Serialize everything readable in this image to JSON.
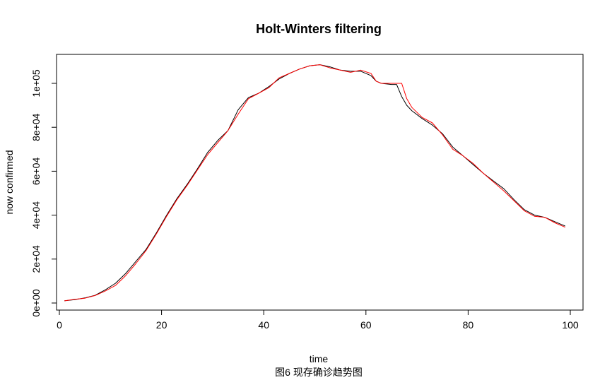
{
  "caption": "图6 现存确诊趋势图",
  "chart_data": {
    "type": "line",
    "title": "Holt-Winters filtering",
    "xlabel": "time",
    "ylabel": "now confirmed",
    "xlim": [
      1,
      99
    ],
    "ylim": [
      0,
      109000
    ],
    "x_ticks": [
      0,
      20,
      40,
      60,
      80,
      100
    ],
    "x_tick_labels": [
      "0",
      "20",
      "40",
      "60",
      "80",
      "100"
    ],
    "y_ticks": [
      0,
      20000,
      40000,
      60000,
      80000,
      100000
    ],
    "y_tick_labels": [
      "0e+00",
      "2e+04",
      "4e+04",
      "6e+04",
      "8e+04",
      "1e+05"
    ],
    "grid": false,
    "legend": "none",
    "x": [
      1,
      3,
      5,
      7,
      9,
      11,
      13,
      15,
      17,
      19,
      21,
      23,
      25,
      27,
      29,
      31,
      33,
      35,
      37,
      39,
      41,
      43,
      45,
      47,
      49,
      51,
      53,
      55,
      57,
      59,
      61,
      62,
      63,
      65,
      66,
      67,
      68,
      69,
      71,
      73,
      75,
      77,
      79,
      81,
      83,
      85,
      87,
      89,
      91,
      93,
      95,
      97,
      99
    ],
    "series": [
      {
        "color": "#000000",
        "values": [
          1000,
          1500,
          2300,
          3500,
          6000,
          9000,
          13500,
          19000,
          24500,
          32000,
          40000,
          47500,
          54000,
          61000,
          68500,
          74000,
          78500,
          88000,
          93500,
          95500,
          98500,
          102000,
          104500,
          106500,
          108000,
          108500,
          107500,
          106000,
          105500,
          105500,
          103500,
          101000,
          100000,
          99500,
          99500,
          94000,
          90000,
          87500,
          84000,
          81000,
          77000,
          71000,
          67000,
          63000,
          59000,
          55500,
          52000,
          47000,
          42500,
          40000,
          39000,
          37000,
          35000
        ]
      },
      {
        "color": "#ff0000",
        "values": [
          1000,
          1700,
          2200,
          3400,
          5500,
          8000,
          12500,
          18000,
          24000,
          31500,
          39500,
          47000,
          53500,
          60500,
          67500,
          73000,
          78500,
          86000,
          93000,
          95500,
          98000,
          102500,
          104500,
          106500,
          108000,
          108500,
          107000,
          106000,
          105000,
          106000,
          104500,
          101000,
          100000,
          100000,
          100000,
          100000,
          93000,
          89000,
          84500,
          82000,
          76500,
          70000,
          67000,
          63500,
          59000,
          55000,
          51000,
          46500,
          42000,
          39500,
          39000,
          36500,
          34500
        ]
      }
    ]
  }
}
